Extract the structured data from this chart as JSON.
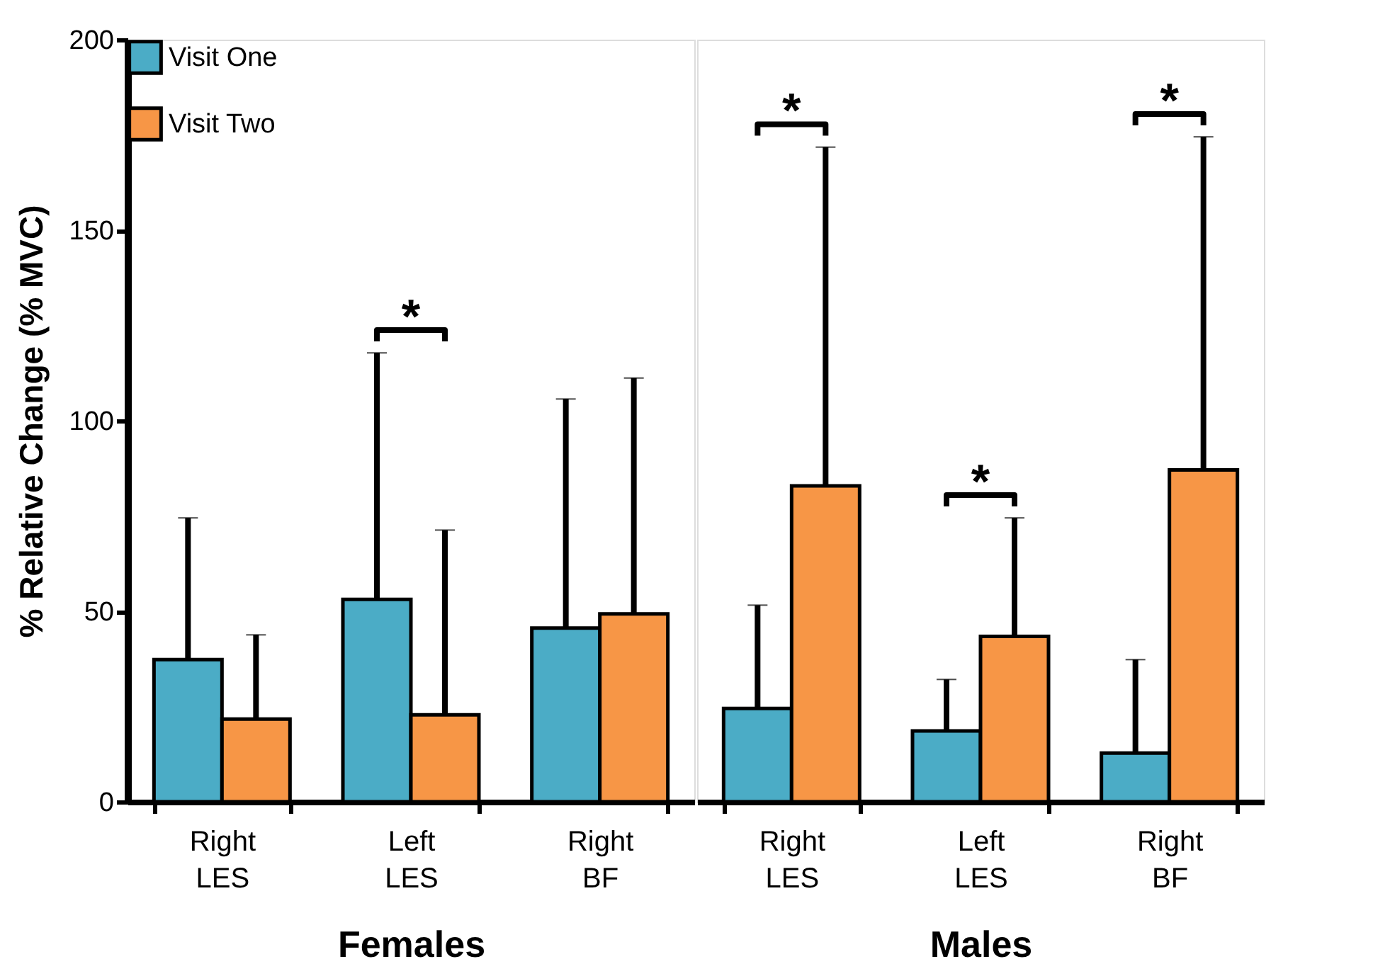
{
  "chart_data": [
    {
      "type": "bar",
      "xlabel": "Females",
      "ylabel": "% Relative Change (% MVC)",
      "categories": [
        "Right LES",
        "Left LES",
        "Right BF"
      ],
      "series": [
        {
          "name": "Visit One",
          "color": "#4bacc6",
          "values": [
            37.3,
            53.1,
            45.6
          ],
          "errors": [
            [
              37.3,
              74.5
            ],
            [
              53.1,
              117.8
            ],
            [
              45.6,
              105.7
            ]
          ]
        },
        {
          "name": "Visit Two",
          "color": "#f79646",
          "values": [
            21.7,
            22.8,
            49.3
          ],
          "errors": [
            [
              21.7,
              43.8
            ],
            [
              22.8,
              71.3
            ],
            [
              49.3,
              111.2
            ]
          ]
        }
      ],
      "ylim": [
        0,
        200
      ],
      "yticks": [
        0,
        50,
        100,
        150,
        200
      ],
      "grid": false,
      "legend": "top left",
      "annotations": [
        "*"
      ]
    },
    {
      "type": "bar",
      "xlabel": "Males",
      "categories": [
        "Right LES",
        "Left LES",
        "Right BF"
      ],
      "series": [
        {
          "name": "Visit One",
          "color": "#4bacc6",
          "values": [
            24.5,
            18.6,
            12.8
          ],
          "errors": [
            [
              24.5,
              51.6
            ],
            [
              18.6,
              32.1
            ],
            [
              12.8,
              37.3
            ]
          ]
        },
        {
          "name": "Visit Two",
          "color": "#f79646",
          "values": [
            82.9,
            43.4,
            87.1
          ],
          "errors": [
            [
              82.9,
              171.8
            ],
            [
              43.4,
              74.5
            ],
            [
              87.1,
              174.5
            ]
          ]
        }
      ],
      "ylim": [
        0,
        200
      ],
      "yticks": [
        0,
        50,
        100,
        150,
        200
      ],
      "grid": false,
      "tick_labels": "x",
      "legend": false,
      "annotations": [
        "*",
        "*",
        "*"
      ]
    }
  ]
}
